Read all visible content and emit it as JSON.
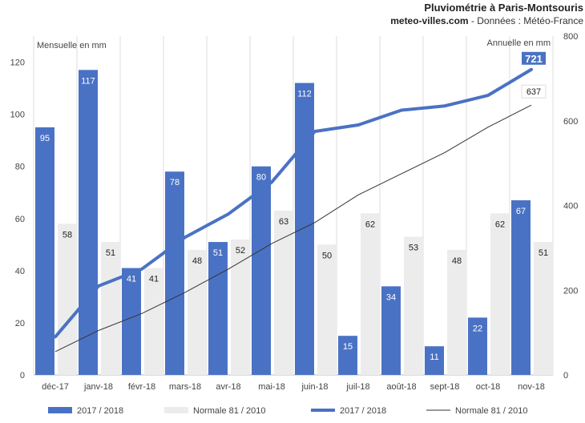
{
  "header": {
    "title": "Pluviométrie à Paris-Montsouris",
    "site": "meteo-villes.com",
    "source": " - Données : Météo-France"
  },
  "chart_data": {
    "type": "bar",
    "categories": [
      "déc-17",
      "janv-18",
      "févr-18",
      "mars-18",
      "avr-18",
      "mai-18",
      "juin-18",
      "juil-18",
      "août-18",
      "sept-18",
      "oct-18",
      "nov-18"
    ],
    "y_left": {
      "label": "Mensuelle en mm",
      "ylim": [
        0,
        130
      ],
      "ticks": [
        0,
        20,
        40,
        60,
        80,
        100,
        120
      ]
    },
    "y_right": {
      "label": "Annuelle en mm",
      "ylim": [
        0,
        800
      ],
      "ticks": [
        0,
        200,
        400,
        600,
        800
      ]
    },
    "series": [
      {
        "name": "2017 / 2018",
        "type": "bar",
        "axis": "left",
        "color": "#4a72c4",
        "values": [
          95,
          117,
          41,
          78,
          51,
          80,
          112,
          15,
          34,
          11,
          22,
          67
        ]
      },
      {
        "name": "Normale 81 / 2010",
        "type": "bar",
        "axis": "left",
        "color": "#ececec",
        "values": [
          58,
          51,
          41,
          48,
          52,
          63,
          50,
          62,
          53,
          48,
          62,
          51
        ]
      },
      {
        "name": "2017 / 2018",
        "type": "line",
        "axis": "right",
        "color": "#4a72c4",
        "values": [
          90,
          210,
          250,
          325,
          380,
          455,
          575,
          590,
          625,
          635,
          660,
          721
        ],
        "end_label": "721"
      },
      {
        "name": "Normale 81 / 2010",
        "type": "line",
        "axis": "right",
        "color": "#333333",
        "values": [
          55,
          105,
          145,
          195,
          250,
          310,
          360,
          425,
          475,
          525,
          585,
          637
        ],
        "end_label": "637"
      }
    ],
    "grid": true,
    "legend_position": "bottom"
  }
}
